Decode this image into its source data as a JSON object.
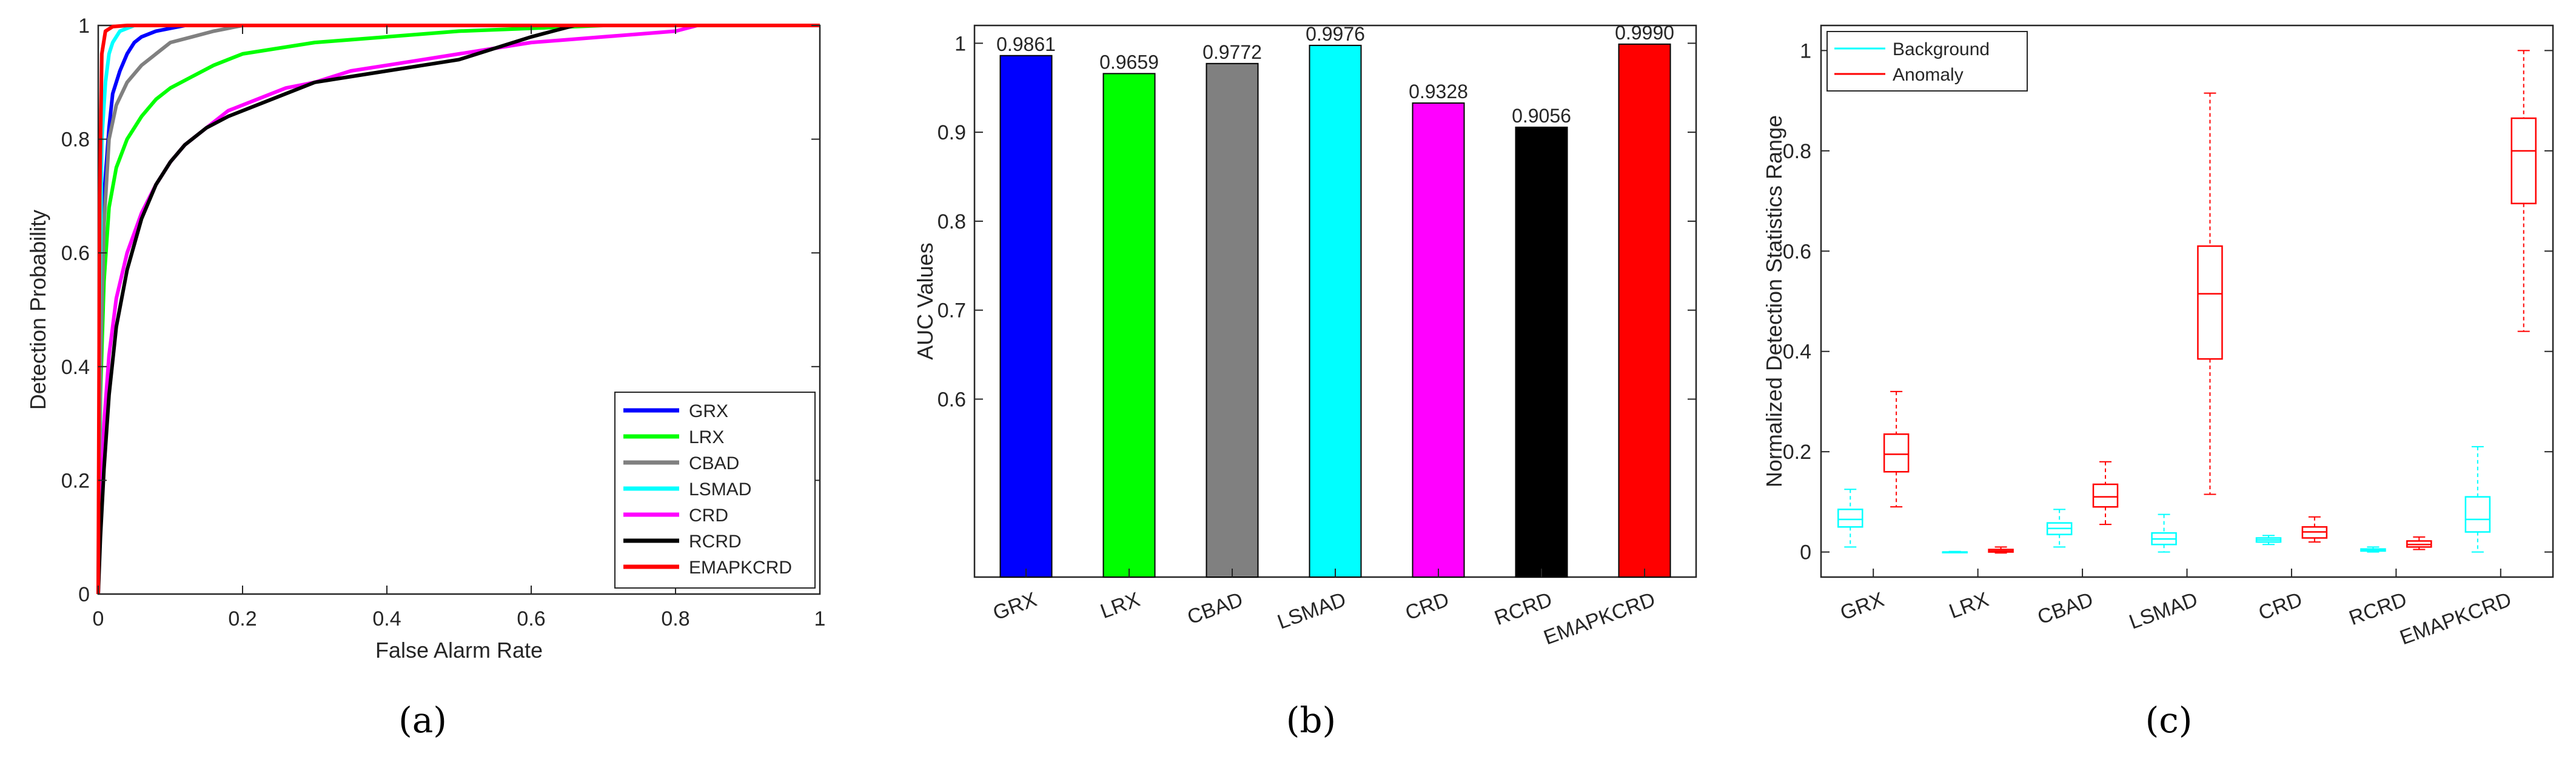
{
  "colors": {
    "GRX": "#0000ff",
    "LRX": "#00ff00",
    "CBAD": "#808080",
    "LSMAD": "#00ffff",
    "CRD": "#ff00ff",
    "RCRD": "#000000",
    "EMAPKCRD": "#ff0000",
    "background": "#00ffff",
    "anomaly": "#ff0000"
  },
  "chart_data": [
    {
      "type": "line",
      "panel_label": "(a)",
      "xlabel": "False Alarm Rate",
      "ylabel": "Detection Probability",
      "xlim": [
        0,
        1
      ],
      "ylim": [
        0,
        1
      ],
      "xticks": [
        0,
        0.2,
        0.4,
        0.6,
        0.8,
        1
      ],
      "xtick_labels": [
        "0",
        "0.2",
        "0.4",
        "0.6",
        "0.8",
        "1"
      ],
      "yticks": [
        0,
        0.2,
        0.4,
        0.6,
        0.8,
        1
      ],
      "ytick_labels": [
        "0",
        "0.2",
        "0.4",
        "0.6",
        "0.8",
        "1"
      ],
      "legend_position": "bottom-right",
      "series": [
        {
          "name": "GRX",
          "color": "#0000ff",
          "x": [
            0,
            0.003,
            0.008,
            0.015,
            0.02,
            0.03,
            0.04,
            0.05,
            0.06,
            0.08,
            0.1,
            0.12,
            1
          ],
          "y": [
            0,
            0.45,
            0.7,
            0.82,
            0.88,
            0.92,
            0.95,
            0.97,
            0.98,
            0.99,
            0.995,
            1,
            1
          ]
        },
        {
          "name": "LRX",
          "color": "#00ff00",
          "x": [
            0,
            0.003,
            0.008,
            0.015,
            0.025,
            0.04,
            0.06,
            0.08,
            0.1,
            0.13,
            0.16,
            0.2,
            0.25,
            0.3,
            0.35,
            0.4,
            0.5,
            0.6,
            0.7,
            1
          ],
          "y": [
            0,
            0.35,
            0.55,
            0.68,
            0.75,
            0.8,
            0.84,
            0.87,
            0.89,
            0.91,
            0.93,
            0.95,
            0.96,
            0.97,
            0.975,
            0.98,
            0.99,
            0.995,
            1,
            1
          ]
        },
        {
          "name": "CBAD",
          "color": "#808080",
          "x": [
            0,
            0.003,
            0.008,
            0.015,
            0.025,
            0.04,
            0.06,
            0.08,
            0.1,
            0.13,
            0.16,
            0.2,
            1
          ],
          "y": [
            0,
            0.4,
            0.65,
            0.8,
            0.86,
            0.9,
            0.93,
            0.95,
            0.97,
            0.98,
            0.99,
            1,
            1
          ]
        },
        {
          "name": "LSMAD",
          "color": "#00ffff",
          "x": [
            0,
            0.002,
            0.005,
            0.01,
            0.015,
            0.02,
            0.03,
            0.04,
            0.05,
            1
          ],
          "y": [
            0,
            0.5,
            0.8,
            0.9,
            0.95,
            0.97,
            0.99,
            0.995,
            1,
            1
          ]
        },
        {
          "name": "CRD",
          "color": "#ff00ff",
          "x": [
            0,
            0.003,
            0.008,
            0.015,
            0.025,
            0.04,
            0.06,
            0.08,
            0.1,
            0.12,
            0.15,
            0.18,
            0.22,
            0.26,
            0.3,
            0.35,
            0.4,
            0.45,
            0.5,
            0.55,
            0.6,
            0.65,
            0.7,
            0.75,
            0.8,
            0.83,
            1
          ],
          "y": [
            0,
            0.15,
            0.3,
            0.42,
            0.52,
            0.6,
            0.67,
            0.72,
            0.76,
            0.79,
            0.82,
            0.85,
            0.87,
            0.89,
            0.9,
            0.92,
            0.93,
            0.94,
            0.95,
            0.96,
            0.97,
            0.975,
            0.98,
            0.985,
            0.99,
            1,
            1
          ]
        },
        {
          "name": "RCRD",
          "color": "#000000",
          "x": [
            0,
            0.003,
            0.008,
            0.015,
            0.025,
            0.04,
            0.06,
            0.08,
            0.1,
            0.12,
            0.15,
            0.18,
            0.22,
            0.26,
            0.3,
            0.35,
            0.4,
            0.45,
            0.5,
            0.55,
            0.6,
            0.63,
            0.66,
            1
          ],
          "y": [
            0,
            0.1,
            0.22,
            0.35,
            0.47,
            0.57,
            0.66,
            0.72,
            0.76,
            0.79,
            0.82,
            0.84,
            0.86,
            0.88,
            0.9,
            0.91,
            0.92,
            0.93,
            0.94,
            0.96,
            0.98,
            0.99,
            1,
            1
          ]
        },
        {
          "name": "EMAPKCRD",
          "color": "#ff0000",
          "x": [
            0,
            0.002,
            0.005,
            0.01,
            0.02,
            0.04,
            1
          ],
          "y": [
            0,
            0.7,
            0.95,
            0.99,
            0.998,
            1,
            1
          ]
        }
      ]
    },
    {
      "type": "bar",
      "panel_label": "(b)",
      "ylabel": "AUC Values",
      "categories": [
        "GRX",
        "LRX",
        "CBAD",
        "LSMAD",
        "CRD",
        "RCRD",
        "EMAPKCRD"
      ],
      "values": [
        0.9861,
        0.9659,
        0.9772,
        0.9976,
        0.9328,
        0.9056,
        0.999
      ],
      "value_labels": [
        "0.9861",
        "0.9659",
        "0.9772",
        "0.9976",
        "0.9328",
        "0.9056",
        "0.9990"
      ],
      "colors": [
        "#0000ff",
        "#00ff00",
        "#808080",
        "#00ffff",
        "#ff00ff",
        "#000000",
        "#ff0000"
      ],
      "ylim": [
        0.4,
        1.02
      ],
      "yticks": [
        0.6,
        0.7,
        0.8,
        0.9,
        1
      ],
      "ytick_labels": [
        "0.6",
        "0.7",
        "0.8",
        "0.9",
        "1"
      ]
    },
    {
      "type": "box",
      "panel_label": "(c)",
      "ylabel": "Normalized Detection Statistics Range",
      "categories": [
        "GRX",
        "LRX",
        "CBAD",
        "LSMAD",
        "CRD",
        "RCRD",
        "EMAPKCRD"
      ],
      "ylim": [
        -0.05,
        1.05
      ],
      "yticks": [
        0,
        0.2,
        0.4,
        0.6,
        0.8,
        1
      ],
      "ytick_labels": [
        "0",
        "0.2",
        "0.4",
        "0.6",
        "0.8",
        "1"
      ],
      "legend_position": "top-left",
      "series": [
        {
          "name": "Background",
          "color": "#00ffff",
          "boxes": [
            {
              "min": 0.01,
              "q1": 0.05,
              "median": 0.065,
              "q3": 0.085,
              "max": 0.125
            },
            {
              "min": 0.0,
              "q1": 0.0,
              "median": 0.0,
              "q3": 0.0,
              "max": 0.001
            },
            {
              "min": 0.01,
              "q1": 0.035,
              "median": 0.047,
              "q3": 0.058,
              "max": 0.085
            },
            {
              "min": 0.0,
              "q1": 0.015,
              "median": 0.026,
              "q3": 0.038,
              "max": 0.075
            },
            {
              "min": 0.015,
              "q1": 0.02,
              "median": 0.024,
              "q3": 0.028,
              "max": 0.033
            },
            {
              "min": 0.0,
              "q1": 0.002,
              "median": 0.004,
              "q3": 0.006,
              "max": 0.01
            },
            {
              "min": 0.0,
              "q1": 0.04,
              "median": 0.065,
              "q3": 0.11,
              "max": 0.21
            }
          ]
        },
        {
          "name": "Anomaly",
          "color": "#ff0000",
          "boxes": [
            {
              "min": 0.09,
              "q1": 0.16,
              "median": 0.195,
              "q3": 0.235,
              "max": 0.32
            },
            {
              "min": -0.002,
              "q1": 0.0,
              "median": 0.002,
              "q3": 0.005,
              "max": 0.01
            },
            {
              "min": 0.055,
              "q1": 0.09,
              "median": 0.11,
              "q3": 0.135,
              "max": 0.18
            },
            {
              "min": 0.115,
              "q1": 0.385,
              "median": 0.515,
              "q3": 0.61,
              "max": 0.915
            },
            {
              "min": 0.02,
              "q1": 0.028,
              "median": 0.04,
              "q3": 0.05,
              "max": 0.07
            },
            {
              "min": 0.005,
              "q1": 0.01,
              "median": 0.015,
              "q3": 0.022,
              "max": 0.03
            },
            {
              "min": 0.44,
              "q1": 0.695,
              "median": 0.8,
              "q3": 0.865,
              "max": 1.0
            }
          ]
        }
      ]
    }
  ]
}
